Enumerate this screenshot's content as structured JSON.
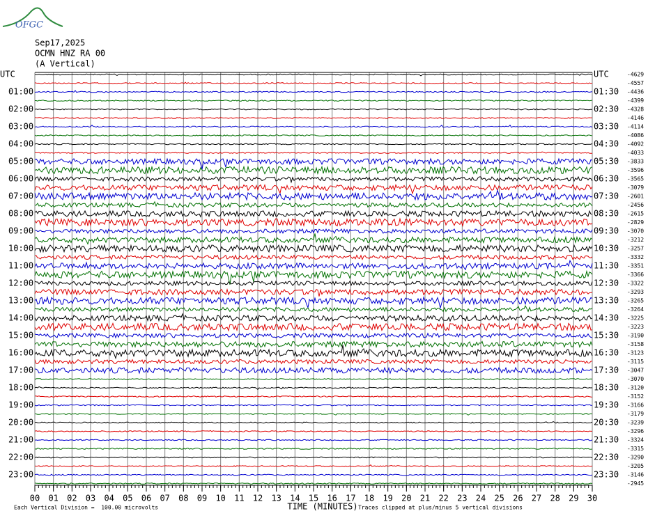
{
  "chart_data": {
    "type": "helicorder",
    "logo": "OFGC",
    "date": "Sep17,2025",
    "station": "OCMN HNZ RA 00",
    "component": "(A Vertical)",
    "left_labels": [
      "UTC",
      "01:00",
      "02:00",
      "03:00",
      "04:00",
      "05:00",
      "06:00",
      "07:00",
      "08:00",
      "09:00",
      "10:00",
      "11:00",
      "12:00",
      "13:00",
      "14:00",
      "15:00",
      "16:00",
      "17:00",
      "18:00",
      "19:00",
      "20:00",
      "21:00",
      "22:00",
      "23:00"
    ],
    "right_labels": [
      "UTC",
      "01:30",
      "02:30",
      "03:30",
      "04:30",
      "05:30",
      "06:30",
      "07:30",
      "08:30",
      "09:30",
      "10:30",
      "11:30",
      "12:30",
      "13:30",
      "14:30",
      "15:30",
      "16:30",
      "17:30",
      "18:30",
      "19:30",
      "20:30",
      "21:30",
      "22:30",
      "23:30"
    ],
    "offsets": [
      -4629,
      -4557,
      -4436,
      -4399,
      -4328,
      -4146,
      -4114,
      -4086,
      -4092,
      -4033,
      -3833,
      -3596,
      -3565,
      -3079,
      -2601,
      -2456,
      -2615,
      -2829,
      -3070,
      -3212,
      -3257,
      -3332,
      -3351,
      -3366,
      -3322,
      -3293,
      -3265,
      -3264,
      -3225,
      -3223,
      -3190,
      -3158,
      -3123,
      -3115,
      -3047,
      -3070,
      -3120,
      -3152,
      -3166,
      -3179,
      -3239,
      -3296,
      -3324,
      -3315,
      -3290,
      -3205,
      -3146,
      -2945
    ],
    "trace_colors": [
      "#000000",
      "#e00000",
      "#0000d0",
      "#007000"
    ],
    "xlim": [
      0,
      30
    ],
    "xticks": [
      {
        "value": 0,
        "label": "00"
      },
      {
        "value": 1,
        "label": "01"
      },
      {
        "value": 2,
        "label": "02"
      },
      {
        "value": 3,
        "label": "03"
      },
      {
        "value": 4,
        "label": "04"
      },
      {
        "value": 5,
        "label": "05"
      },
      {
        "value": 6,
        "label": "06"
      },
      {
        "value": 7,
        "label": "07"
      },
      {
        "value": 8,
        "label": "08"
      },
      {
        "value": 9,
        "label": "09"
      },
      10,
      11,
      12,
      13,
      14,
      15,
      16,
      17,
      18,
      19,
      20,
      21,
      22,
      23,
      24,
      25,
      26,
      27,
      28,
      29,
      30
    ],
    "xlabel": "TIME (MINUTES)",
    "footer_left": "Each Vertical Division =  100.00 microvolts",
    "footer_right": "Traces clipped at plus/minus 5 vertical divisions"
  }
}
